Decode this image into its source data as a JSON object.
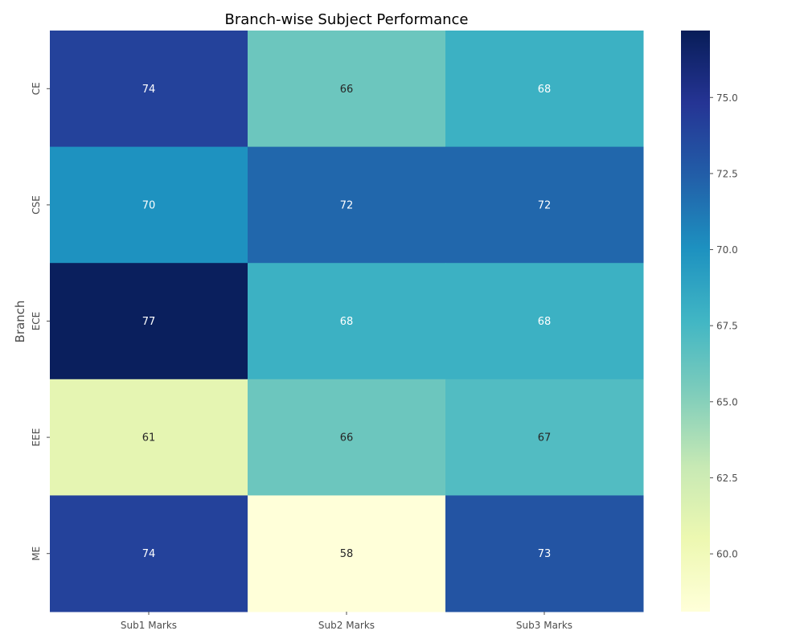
{
  "chart_data": {
    "type": "heatmap",
    "title": "Branch-wise Subject Performance",
    "xlabel": "",
    "ylabel": "Branch",
    "x_categories": [
      "Sub1 Marks",
      "Sub2 Marks",
      "Sub3 Marks"
    ],
    "y_categories": [
      "CE",
      "CSE",
      "ECE",
      "EEE",
      "ME"
    ],
    "values": [
      [
        74,
        66,
        68
      ],
      [
        70,
        72,
        72
      ],
      [
        77,
        68,
        68
      ],
      [
        61,
        66,
        67
      ],
      [
        74,
        58,
        73
      ]
    ],
    "annotations": [
      [
        "74",
        "66",
        "68"
      ],
      [
        "70",
        "72",
        "72"
      ],
      [
        "77",
        "68",
        "68"
      ],
      [
        "61",
        "66",
        "67"
      ],
      [
        "74",
        "58",
        "73"
      ]
    ],
    "colormap": "YlGnBu",
    "vmin": 58.1,
    "vmax": 77.2,
    "colorbar_ticks": [
      "60.0",
      "62.5",
      "65.0",
      "67.5",
      "70.0",
      "72.5",
      "75.0"
    ]
  }
}
